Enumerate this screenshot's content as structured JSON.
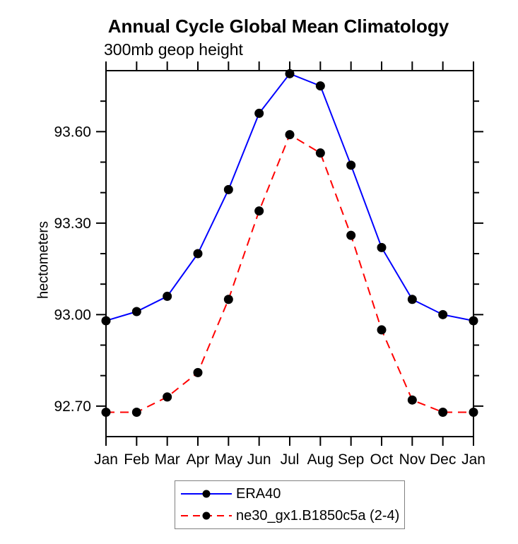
{
  "chart_data": {
    "type": "line",
    "title": "Annual Cycle Global Mean Climatology",
    "subtitle": "300mb geop height",
    "ylabel": "hectometers",
    "xlabel": "",
    "categories": [
      "Jan",
      "Feb",
      "Mar",
      "Apr",
      "May",
      "Jun",
      "Jul",
      "Aug",
      "Sep",
      "Oct",
      "Nov",
      "Dec",
      "Jan"
    ],
    "series": [
      {
        "name": "ERA40",
        "color": "#0000ff",
        "line_style": "solid",
        "marker": "circle",
        "marker_color": "#000000",
        "values": [
          92.98,
          93.01,
          93.06,
          93.2,
          93.41,
          93.66,
          93.79,
          93.75,
          93.49,
          93.22,
          93.05,
          93.0,
          92.98
        ]
      },
      {
        "name": "ne30_gx1.B1850c5a (2-4)",
        "color": "#ff0000",
        "line_style": "dashed",
        "marker": "circle",
        "marker_color": "#000000",
        "values": [
          92.68,
          92.68,
          92.73,
          92.81,
          93.05,
          93.34,
          93.59,
          93.53,
          93.26,
          92.95,
          92.72,
          92.68,
          92.68
        ]
      }
    ],
    "ylim": [
      92.6,
      93.8
    ],
    "yticks_major": [
      92.7,
      93.0,
      93.3,
      93.6
    ],
    "ytick_labels": [
      "92.70",
      "93.00",
      "93.30",
      "93.60"
    ],
    "ytick_minor_step": 0.1,
    "grid": false,
    "legend_position": "bottom-center",
    "axis_color": "#000000",
    "background_color": "#ffffff"
  }
}
